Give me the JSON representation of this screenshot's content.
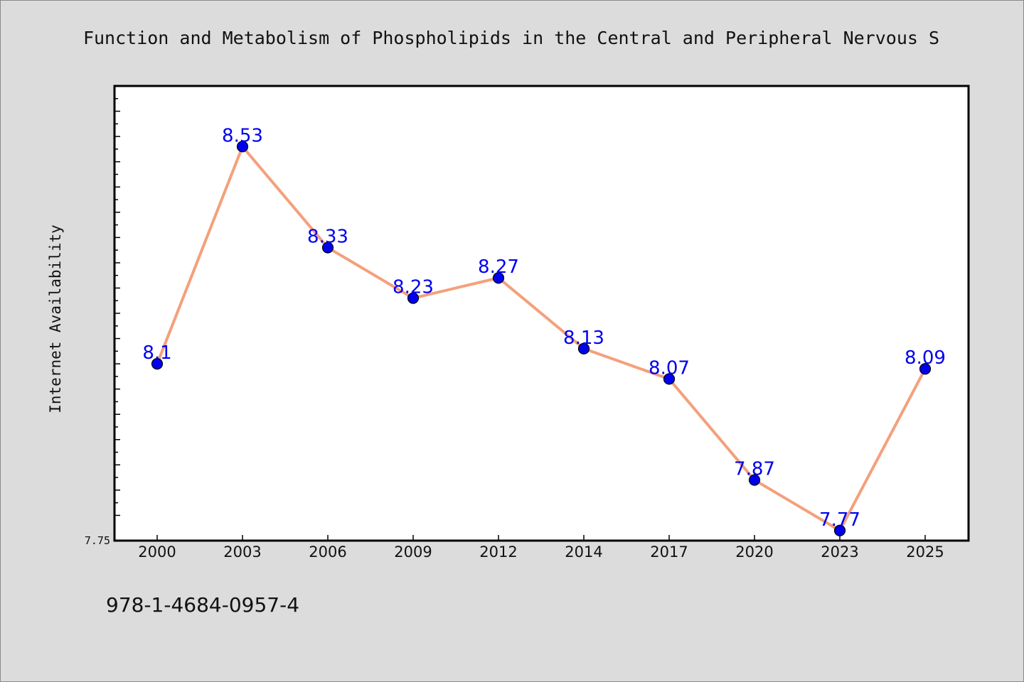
{
  "chart_data": {
    "type": "line",
    "title": "Function and Metabolism of Phospholipids in the Central and Peripheral Nervous S",
    "xlabel": "",
    "ylabel": "Internet Availability",
    "categories": [
      "2000",
      "2003",
      "2006",
      "2009",
      "2012",
      "2014",
      "2017",
      "2020",
      "2023",
      "2025"
    ],
    "series": [
      {
        "values": [
          8.1,
          8.53,
          8.33,
          8.23,
          8.27,
          8.13,
          8.07,
          7.87,
          7.77,
          8.09
        ],
        "labels": [
          "8.1",
          "8.53",
          "8.33",
          "8.23",
          "8.27",
          "8.13",
          "8.07",
          "7.87",
          "7.77",
          "8.09"
        ]
      }
    ],
    "ylim": [
      7.75,
      8.65
    ],
    "yticks": [
      {
        "value": 7.75,
        "label": "7.75"
      }
    ],
    "grid": false,
    "legend": "none"
  },
  "footer": {
    "isbn": "978-1-4684-0957-4"
  },
  "colors": {
    "line": "#f4a07c",
    "marker": "#0000ee",
    "label": "#0000ee",
    "background": "#dcdcdc",
    "plot_background": "#ffffff"
  }
}
